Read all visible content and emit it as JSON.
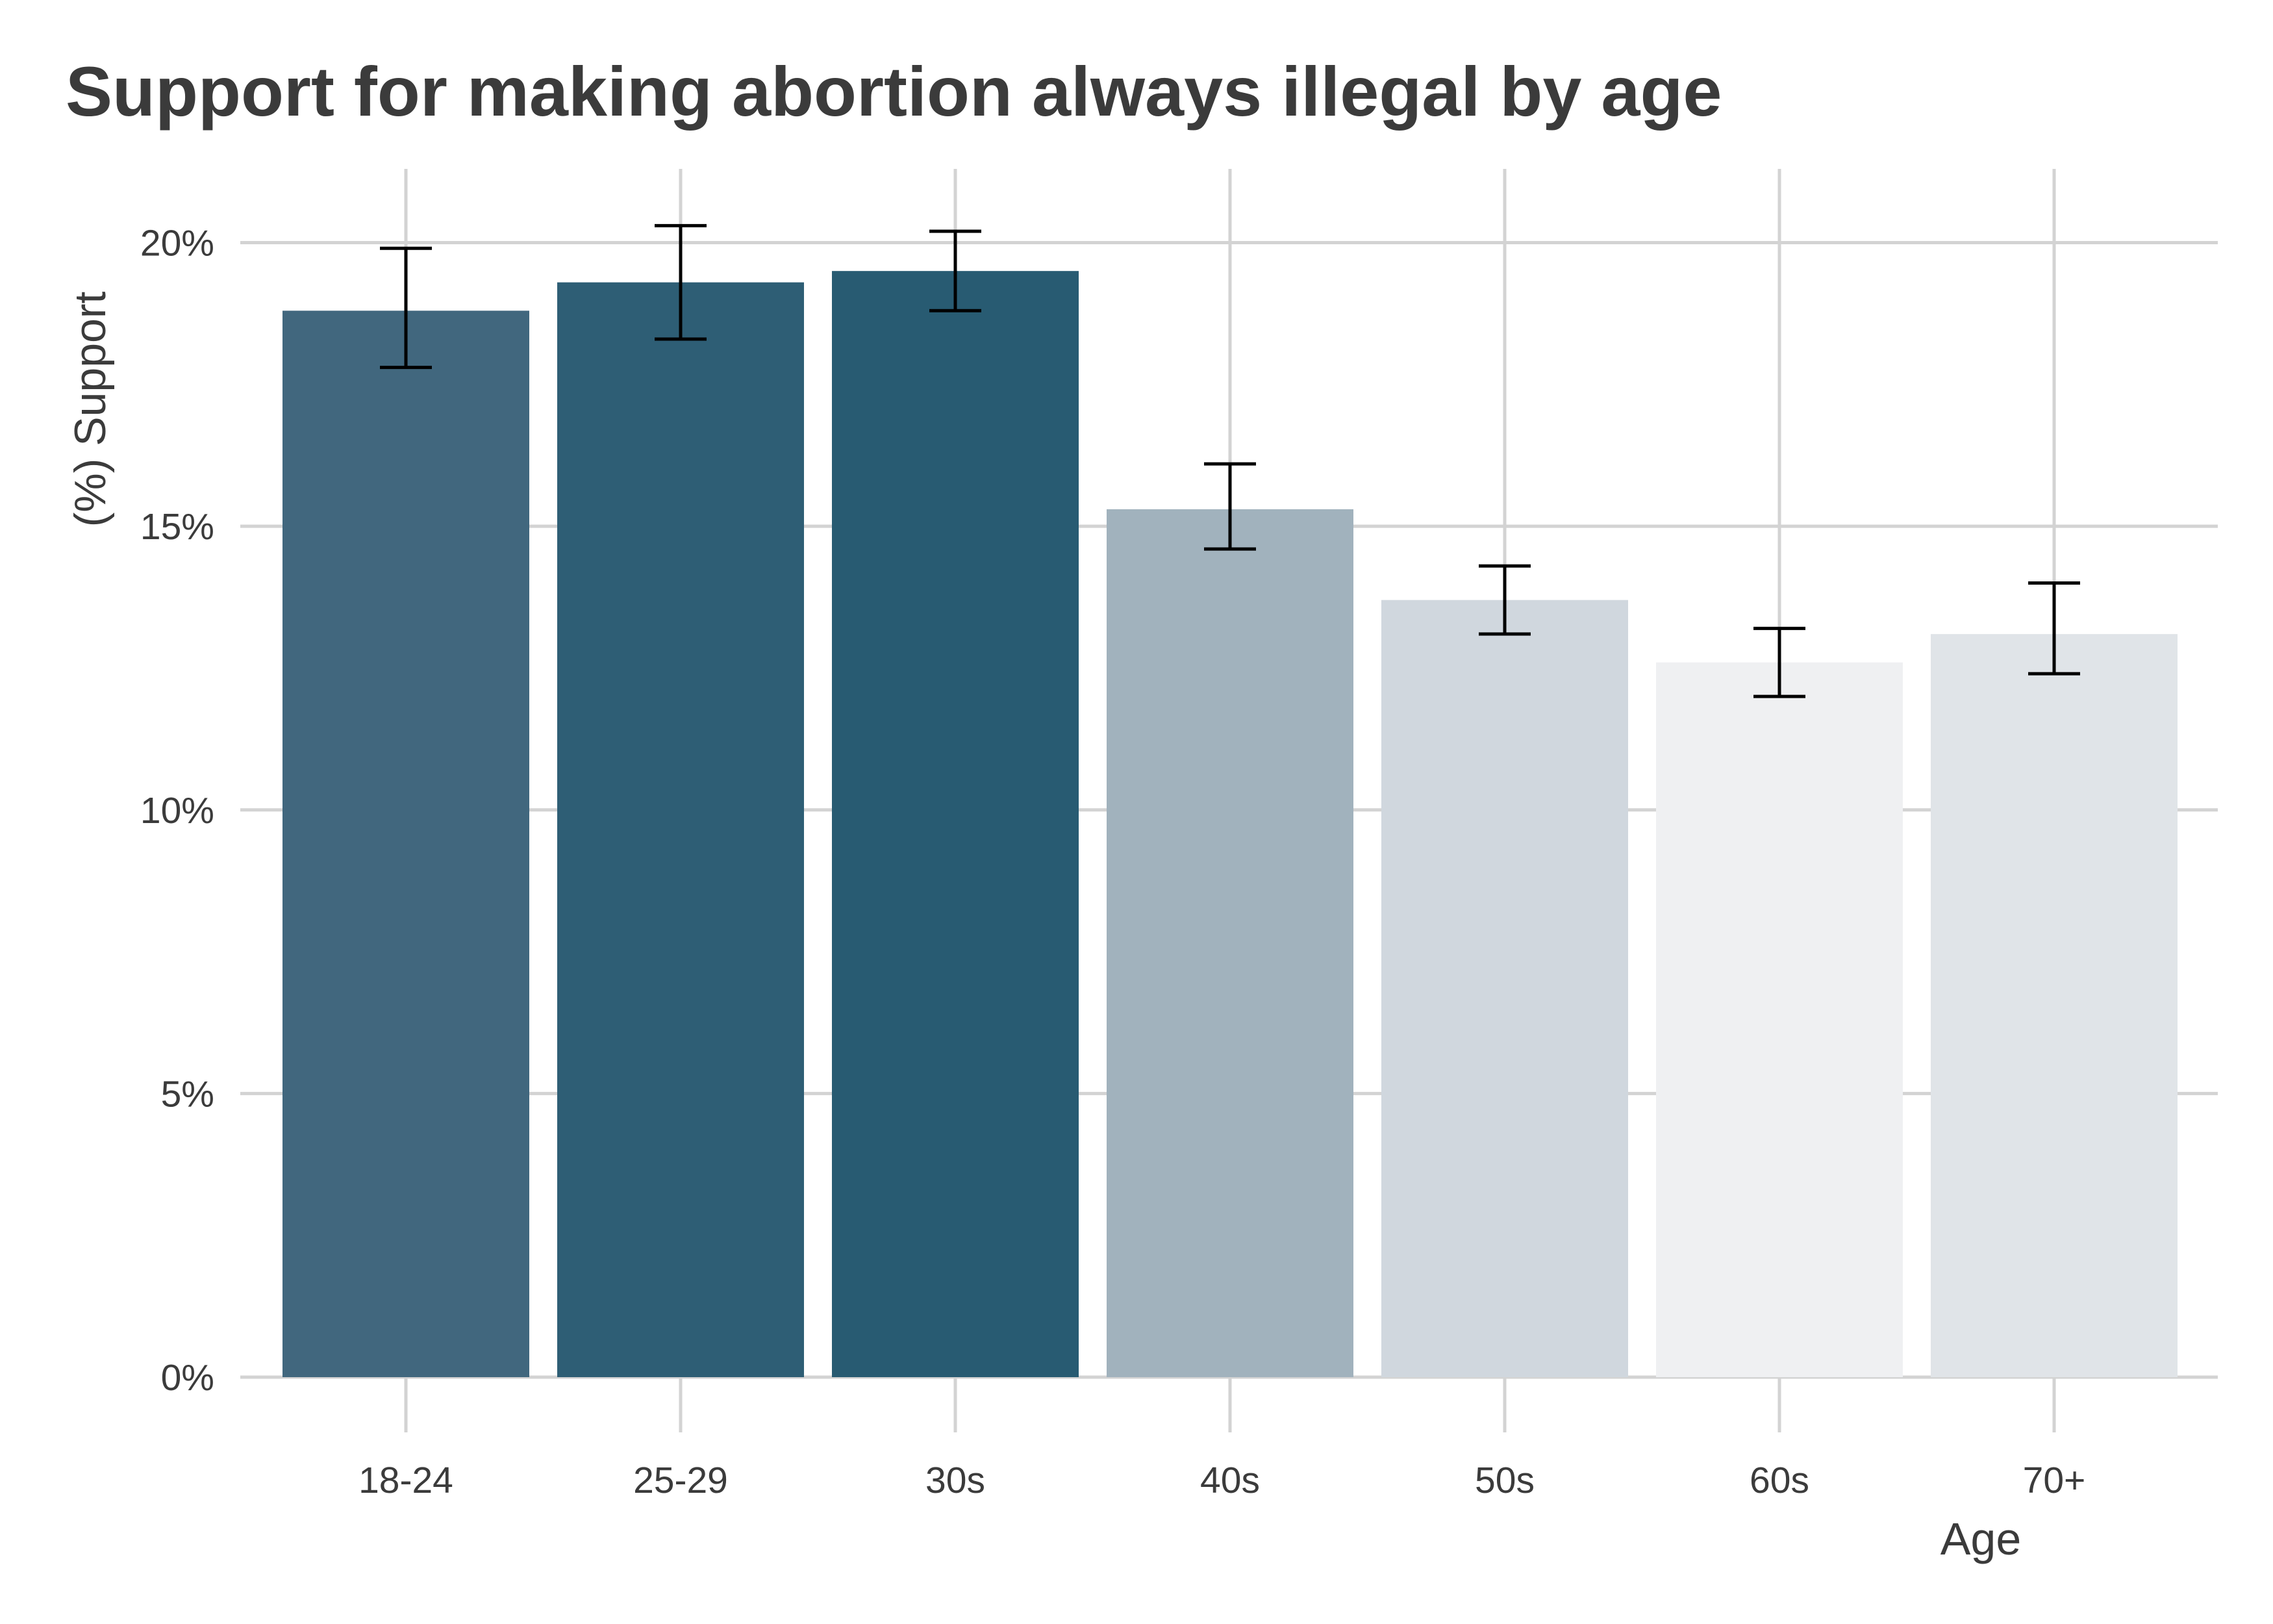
{
  "chart_data": {
    "type": "bar",
    "title": "Support for making abortion always illegal by age",
    "xlabel": "Age",
    "ylabel": "(%) Support",
    "categories": [
      "18-24",
      "25-29",
      "30s",
      "40s",
      "50s",
      "60s",
      "70+"
    ],
    "values": [
      18.8,
      19.3,
      19.5,
      15.3,
      13.7,
      12.6,
      13.1
    ],
    "error_low": [
      17.8,
      18.3,
      18.8,
      14.6,
      13.1,
      12.0,
      12.4
    ],
    "error_high": [
      19.9,
      20.3,
      20.2,
      16.1,
      14.3,
      13.2,
      14.0
    ],
    "bar_colors": [
      "#41677e",
      "#2e5e75",
      "#285b72",
      "#a1b2bd",
      "#d0d7de",
      "#eff0f2",
      "#e0e4e8"
    ],
    "ylim": [
      0,
      21.3
    ],
    "yticks": [
      0,
      5,
      10,
      15,
      20
    ],
    "ytick_labels": [
      "0%",
      "5%",
      "10%",
      "15%",
      "20%"
    ],
    "grid": true,
    "legend": "none"
  },
  "colors": {
    "grid": "#d3d3d3",
    "errorbar": "#000000",
    "text": "#3b3b3b",
    "background": "#ffffff"
  }
}
